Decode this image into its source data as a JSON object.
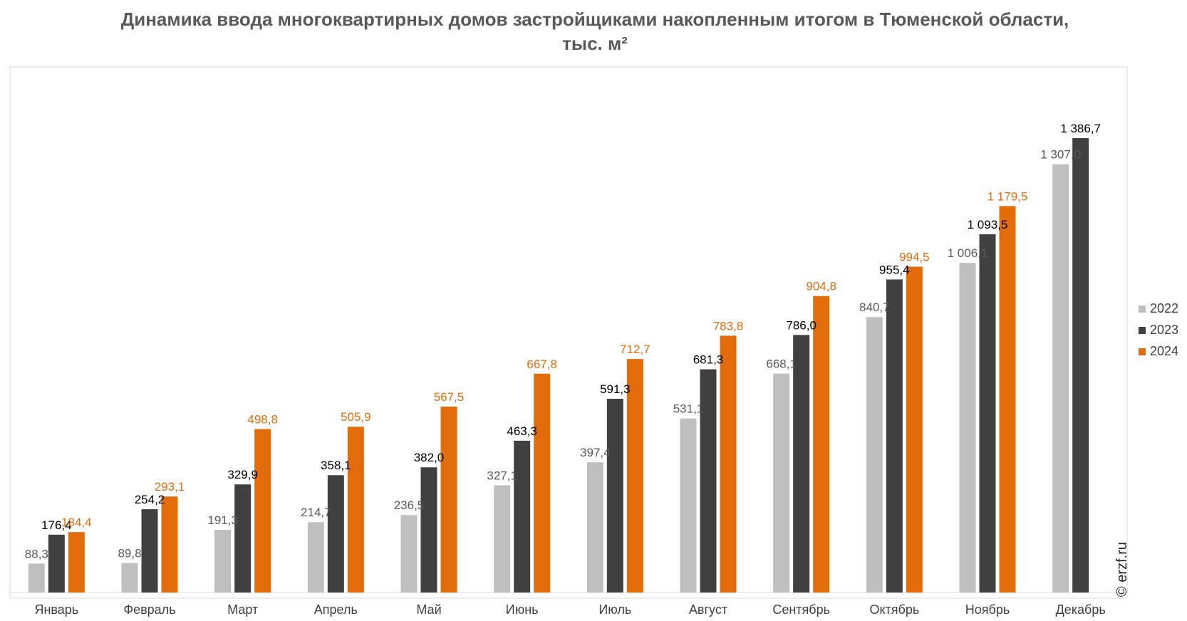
{
  "chart_data": {
    "type": "bar",
    "title": "Динамика ввода многоквартирных домов застройщиками накопленным итогом в Тюменской области, тыс. м²",
    "categories": [
      "Январь",
      "Февраль",
      "Март",
      "Апрель",
      "Май",
      "Июнь",
      "Июль",
      "Август",
      "Сентябрь",
      "Октябрь",
      "Ноябрь",
      "Декабрь"
    ],
    "series": [
      {
        "name": "2022",
        "color": "#bfbfbf",
        "label_color": "#595959",
        "values": [
          88.3,
          89.8,
          191.3,
          214.7,
          236.5,
          327.1,
          397.4,
          531.1,
          668.1,
          840.7,
          1006.1,
          1307.0
        ],
        "labels": [
          "88,3",
          "89,8",
          "191,3",
          "214,7",
          "236,5",
          "327,1",
          "397,4",
          "531,1",
          "668,1",
          "840,7",
          "1 006,1",
          "1 307,0"
        ]
      },
      {
        "name": "2023",
        "color": "#404040",
        "label_color": "#000000",
        "values": [
          176.4,
          254.2,
          329.9,
          358.1,
          382.0,
          463.3,
          591.3,
          681.3,
          786.0,
          955.4,
          1093.5,
          1386.7
        ],
        "labels": [
          "176,4",
          "254,2",
          "329,9",
          "358,1",
          "382,0",
          "463,3",
          "591,3",
          "681,3",
          "786,0",
          "955,4",
          "1 093,5",
          "1 386,7"
        ]
      },
      {
        "name": "2024",
        "color": "#e36c0a",
        "label_color": "#e36c0a",
        "values": [
          184.4,
          293.1,
          498.8,
          505.9,
          567.5,
          667.8,
          712.7,
          783.8,
          904.8,
          994.5,
          1179.5,
          null
        ],
        "labels": [
          "184,4",
          "293,1",
          "498,8",
          "505,9",
          "567,5",
          "667,8",
          "712,7",
          "783,8",
          "904,8",
          "994,5",
          "1 179,5",
          ""
        ]
      }
    ],
    "legend_position": "right",
    "grid": false,
    "ylim": [
      0,
      1500
    ]
  },
  "watermark": "© erzf.ru"
}
